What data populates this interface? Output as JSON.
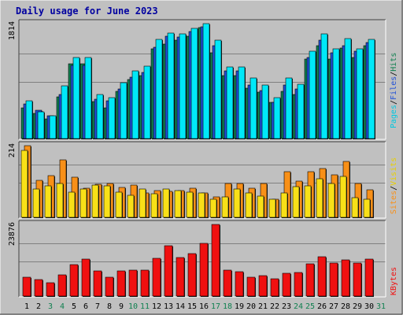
{
  "title": "Daily usage for June 2023",
  "colors": {
    "background": "#c0c0c0",
    "panel": "#c0c0c0",
    "grid": "#808080",
    "hits": "#00e8f8",
    "files": "#2050d8",
    "pages": "#108050",
    "visits": "#f8e018",
    "sites": "#f89018",
    "kbytes": "#f01010",
    "weekday_label": "#000000",
    "weekend_label": "#108050",
    "title": "#0000a0"
  },
  "legend": {
    "top": [
      {
        "text": "Pages",
        "color": "#00c8e0"
      },
      {
        "text": "/",
        "color": "#000000"
      },
      {
        "text": "Files",
        "color": "#2050d8"
      },
      {
        "text": "/",
        "color": "#000000"
      },
      {
        "text": "Hits",
        "color": "#108050"
      }
    ],
    "middle": [
      {
        "text": "Sites",
        "color": "#f89018"
      },
      {
        "text": "/",
        "color": "#000000"
      },
      {
        "text": "Visits",
        "color": "#e8d000"
      }
    ],
    "bottom": [
      {
        "text": "KBytes",
        "color": "#f01010"
      }
    ]
  },
  "chart_data": [
    {
      "type": "bar",
      "title": "Daily usage for June 2023",
      "ymax_label": "1814",
      "ylim": [
        0,
        1814
      ],
      "x": [
        1,
        2,
        3,
        4,
        5,
        6,
        7,
        8,
        9,
        10,
        11,
        12,
        13,
        14,
        15,
        16,
        17,
        18,
        19,
        20,
        21,
        22,
        23,
        24,
        25,
        26,
        27,
        28,
        29,
        30,
        31
      ],
      "weekend_days": [
        3,
        4,
        10,
        11,
        17,
        18,
        24,
        25,
        31
      ],
      "series": [
        {
          "name": "Hits",
          "values": [
            600,
            420,
            360,
            830,
            1280,
            1280,
            690,
            650,
            880,
            1070,
            1140,
            1570,
            1660,
            1650,
            1740,
            1814,
            1550,
            1130,
            1130,
            960,
            840,
            650,
            960,
            860,
            1380,
            1650,
            1420,
            1580,
            1420,
            1560,
            0
          ]
        },
        {
          "name": "Files",
          "values": [
            550,
            450,
            360,
            700,
            1160,
            1160,
            620,
            600,
            780,
            970,
            1040,
            1440,
            1620,
            1600,
            1690,
            1770,
            1460,
            1070,
            1070,
            850,
            760,
            570,
            850,
            780,
            1280,
            1550,
            1350,
            1470,
            1380,
            1520,
            0
          ]
        },
        {
          "name": "Pages",
          "values": [
            480,
            400,
            310,
            660,
            1180,
            1180,
            580,
            490,
            750,
            930,
            1000,
            1420,
            1490,
            1550,
            1620,
            1750,
            1350,
            990,
            1000,
            790,
            730,
            570,
            740,
            700,
            1260,
            1470,
            1260,
            1430,
            1280,
            1460,
            0
          ]
        }
      ]
    },
    {
      "type": "bar",
      "ymax_label": "214",
      "ylim": [
        0,
        214
      ],
      "x": [
        1,
        2,
        3,
        4,
        5,
        6,
        7,
        8,
        9,
        10,
        11,
        12,
        13,
        14,
        15,
        16,
        17,
        18,
        19,
        20,
        21,
        22,
        23,
        24,
        25,
        26,
        27,
        28,
        29,
        30,
        31
      ],
      "series": [
        {
          "name": "Sites",
          "values": [
            214,
            110,
            125,
            171,
            121,
            88,
            99,
            101,
            90,
            97,
            74,
            79,
            78,
            81,
            87,
            74,
            62,
            101,
            101,
            86,
            100,
            53,
            136,
            109,
            136,
            146,
            128,
            166,
            100,
            82,
            0
          ]
        },
        {
          "name": "Visits",
          "values": [
            200,
            85,
            94,
            100,
            76,
            85,
            96,
            95,
            76,
            67,
            85,
            70,
            85,
            80,
            75,
            73,
            53,
            60,
            84,
            74,
            64,
            53,
            73,
            91,
            95,
            116,
            100,
            122,
            58,
            54,
            0
          ]
        }
      ]
    },
    {
      "type": "bar",
      "ymax_label": "23876",
      "ylim": [
        0,
        23876
      ],
      "x": [
        1,
        2,
        3,
        4,
        5,
        6,
        7,
        8,
        9,
        10,
        11,
        12,
        13,
        14,
        15,
        16,
        17,
        18,
        19,
        20,
        21,
        22,
        23,
        24,
        25,
        26,
        27,
        28,
        29,
        30,
        31
      ],
      "series": [
        {
          "name": "KBytes",
          "values": [
            6300,
            5600,
            4500,
            7200,
            10400,
            12400,
            8400,
            6300,
            8300,
            8700,
            8700,
            12600,
            16800,
            12800,
            14200,
            17700,
            23876,
            8700,
            8200,
            6300,
            6700,
            5900,
            7700,
            7900,
            10700,
            13100,
            10900,
            12000,
            10900,
            12400,
            0
          ]
        }
      ]
    }
  ]
}
